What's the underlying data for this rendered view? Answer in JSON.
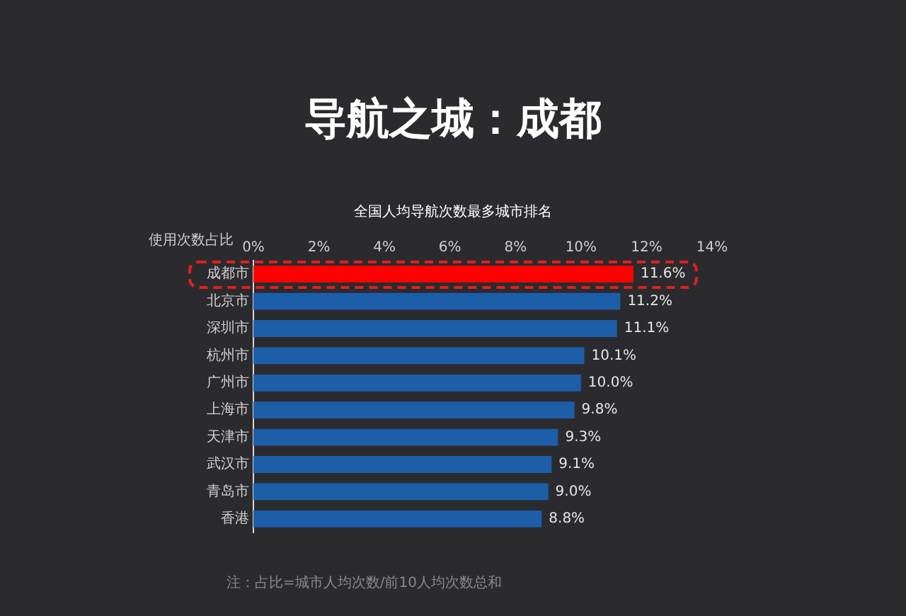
{
  "chart_data": {
    "type": "bar",
    "orientation": "horizontal",
    "title": "导航之城：成都",
    "subtitle": "全国人均导航次数最多城市排名",
    "xlabel": "使用次数占比",
    "categories": [
      "成都市",
      "北京市",
      "深圳市",
      "杭州市",
      "广州市",
      "上海市",
      "天津市",
      "武汉市",
      "青岛市",
      "香港"
    ],
    "values": [
      11.6,
      11.2,
      11.1,
      10.1,
      10.0,
      9.8,
      9.3,
      9.1,
      9.0,
      8.8
    ],
    "value_labels": [
      "11.6%",
      "11.2%",
      "11.1%",
      "10.1%",
      "10.0%",
      "9.8%",
      "9.3%",
      "9.1%",
      "9.0%",
      "8.8%"
    ],
    "colors": [
      "#ff0000",
      "#1c5ea8",
      "#1c5ea8",
      "#1c5ea8",
      "#1c5ea8",
      "#1c5ea8",
      "#1c5ea8",
      "#1c5ea8",
      "#1c5ea8",
      "#1c5ea8"
    ],
    "xlim": [
      0,
      14
    ],
    "xticks": [
      {
        "value": 0,
        "label": "0%"
      },
      {
        "value": 2,
        "label": "2%"
      },
      {
        "value": 4,
        "label": "4%"
      },
      {
        "value": 6,
        "label": "6%"
      },
      {
        "value": 8,
        "label": "8%"
      },
      {
        "value": 10,
        "label": "10%"
      },
      {
        "value": 12,
        "label": "12%"
      },
      {
        "value": 14,
        "label": "14%"
      }
    ],
    "grid": false,
    "legend": false,
    "annotations": [
      "注：占比=城市人均次数/前10人均次数总和"
    ]
  }
}
